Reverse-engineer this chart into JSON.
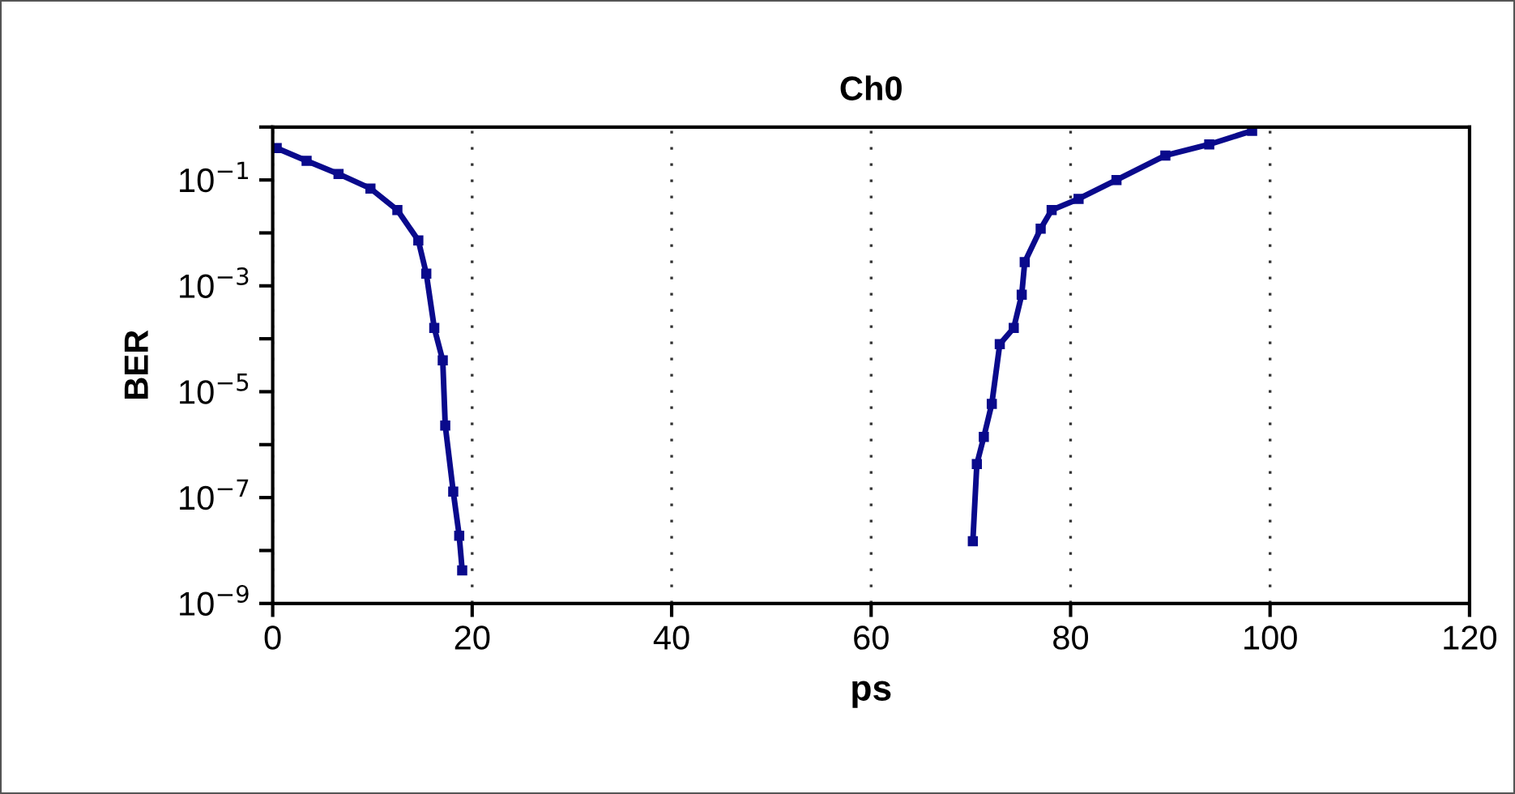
{
  "chart_data": {
    "type": "line",
    "title": "Ch0",
    "xlabel": "ps",
    "ylabel": "BER",
    "log": "y",
    "grid": "x",
    "marker": "square",
    "line_style": "solid",
    "xlim": [
      0,
      120
    ],
    "xticks": [
      0,
      20,
      40,
      60,
      80,
      100,
      120
    ],
    "ylim": [
      1e-09,
      1
    ],
    "yticks": [
      {
        "value": 1,
        "label": null
      },
      {
        "value": 0.1,
        "label": "10$^{−1}$"
      },
      {
        "value": 0.01,
        "label": null
      },
      {
        "value": 0.001,
        "label": "10$^{−3}$"
      },
      {
        "value": 0.0001,
        "label": null
      },
      {
        "value": 1e-05,
        "label": "10$^{−5}$"
      },
      {
        "value": 1e-06,
        "label": null
      },
      {
        "value": 1e-07,
        "label": "10$^{−7}$"
      },
      {
        "value": 1e-08,
        "label": null
      },
      {
        "value": 1e-09,
        "label": "10$^{−9}$"
      }
    ],
    "series": [
      {
        "color": "#0a0a8c",
        "x": [
          0.4,
          3.4,
          6.6,
          9.8,
          12.5,
          14.6,
          15.4,
          16.2,
          17.05,
          17.3,
          18.1,
          18.7,
          19.0
        ],
        "values": [
          0.4,
          0.23,
          0.13,
          0.069,
          0.027,
          0.0072,
          0.0017,
          0.00016,
          3.9e-05,
          2.3e-06,
          1.3e-07,
          1.9e-08,
          4.2e-09
        ]
      },
      {
        "color": "#0a0a8c",
        "x": [
          70.2,
          70.6,
          71.3,
          72.1,
          72.9,
          74.3,
          75.1,
          75.4,
          77.0,
          78.1,
          80.8,
          84.6,
          89.5,
          93.9,
          98.2
        ],
        "values": [
          1.5e-08,
          4.3e-07,
          1.4e-06,
          5.9e-06,
          7.9e-05,
          0.00016,
          0.00068,
          0.0028,
          0.012,
          0.027,
          0.044,
          0.1,
          0.29,
          0.47,
          0.85
        ]
      }
    ]
  }
}
